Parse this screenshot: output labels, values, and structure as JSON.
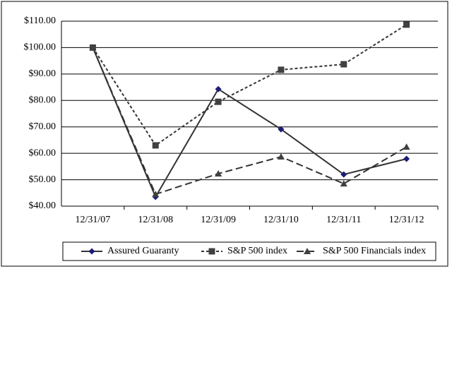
{
  "chart_data": {
    "type": "line",
    "categories": [
      "12/31/07",
      "12/31/08",
      "12/31/09",
      "12/31/10",
      "12/31/11",
      "12/31/12"
    ],
    "series": [
      {
        "name": "Assured Guaranty",
        "color": "#1c1c78",
        "line_color": "#333333",
        "dash": "solid",
        "marker": "diamond",
        "values": [
          100,
          43.5,
          84.3,
          69.1,
          52,
          57.9
        ]
      },
      {
        "name": "S&P 500 index",
        "color": "#404040",
        "line_color": "#333333",
        "dash": "short",
        "marker": "square",
        "values": [
          100,
          63,
          79.5,
          91.6,
          93.7,
          108.7
        ]
      },
      {
        "name": "S&P 500 Financials index",
        "color": "#404040",
        "line_color": "#333333",
        "dash": "long",
        "marker": "triangle",
        "values": [
          100,
          44.5,
          52.3,
          58.7,
          48.5,
          62.4
        ]
      }
    ],
    "ylim": [
      40,
      110
    ],
    "yticks": [
      {
        "value": 40,
        "label": "$40.00"
      },
      {
        "value": 50,
        "label": "$50.00"
      },
      {
        "value": 60,
        "label": "$60.00"
      },
      {
        "value": 70,
        "label": "$70.00"
      },
      {
        "value": 80,
        "label": "$80.00"
      },
      {
        "value": 90,
        "label": "$90.00"
      },
      {
        "value": 100,
        "label": "$100.00"
      },
      {
        "value": 110,
        "label": "$110.00"
      }
    ],
    "grid": true,
    "legend": "bottom"
  }
}
